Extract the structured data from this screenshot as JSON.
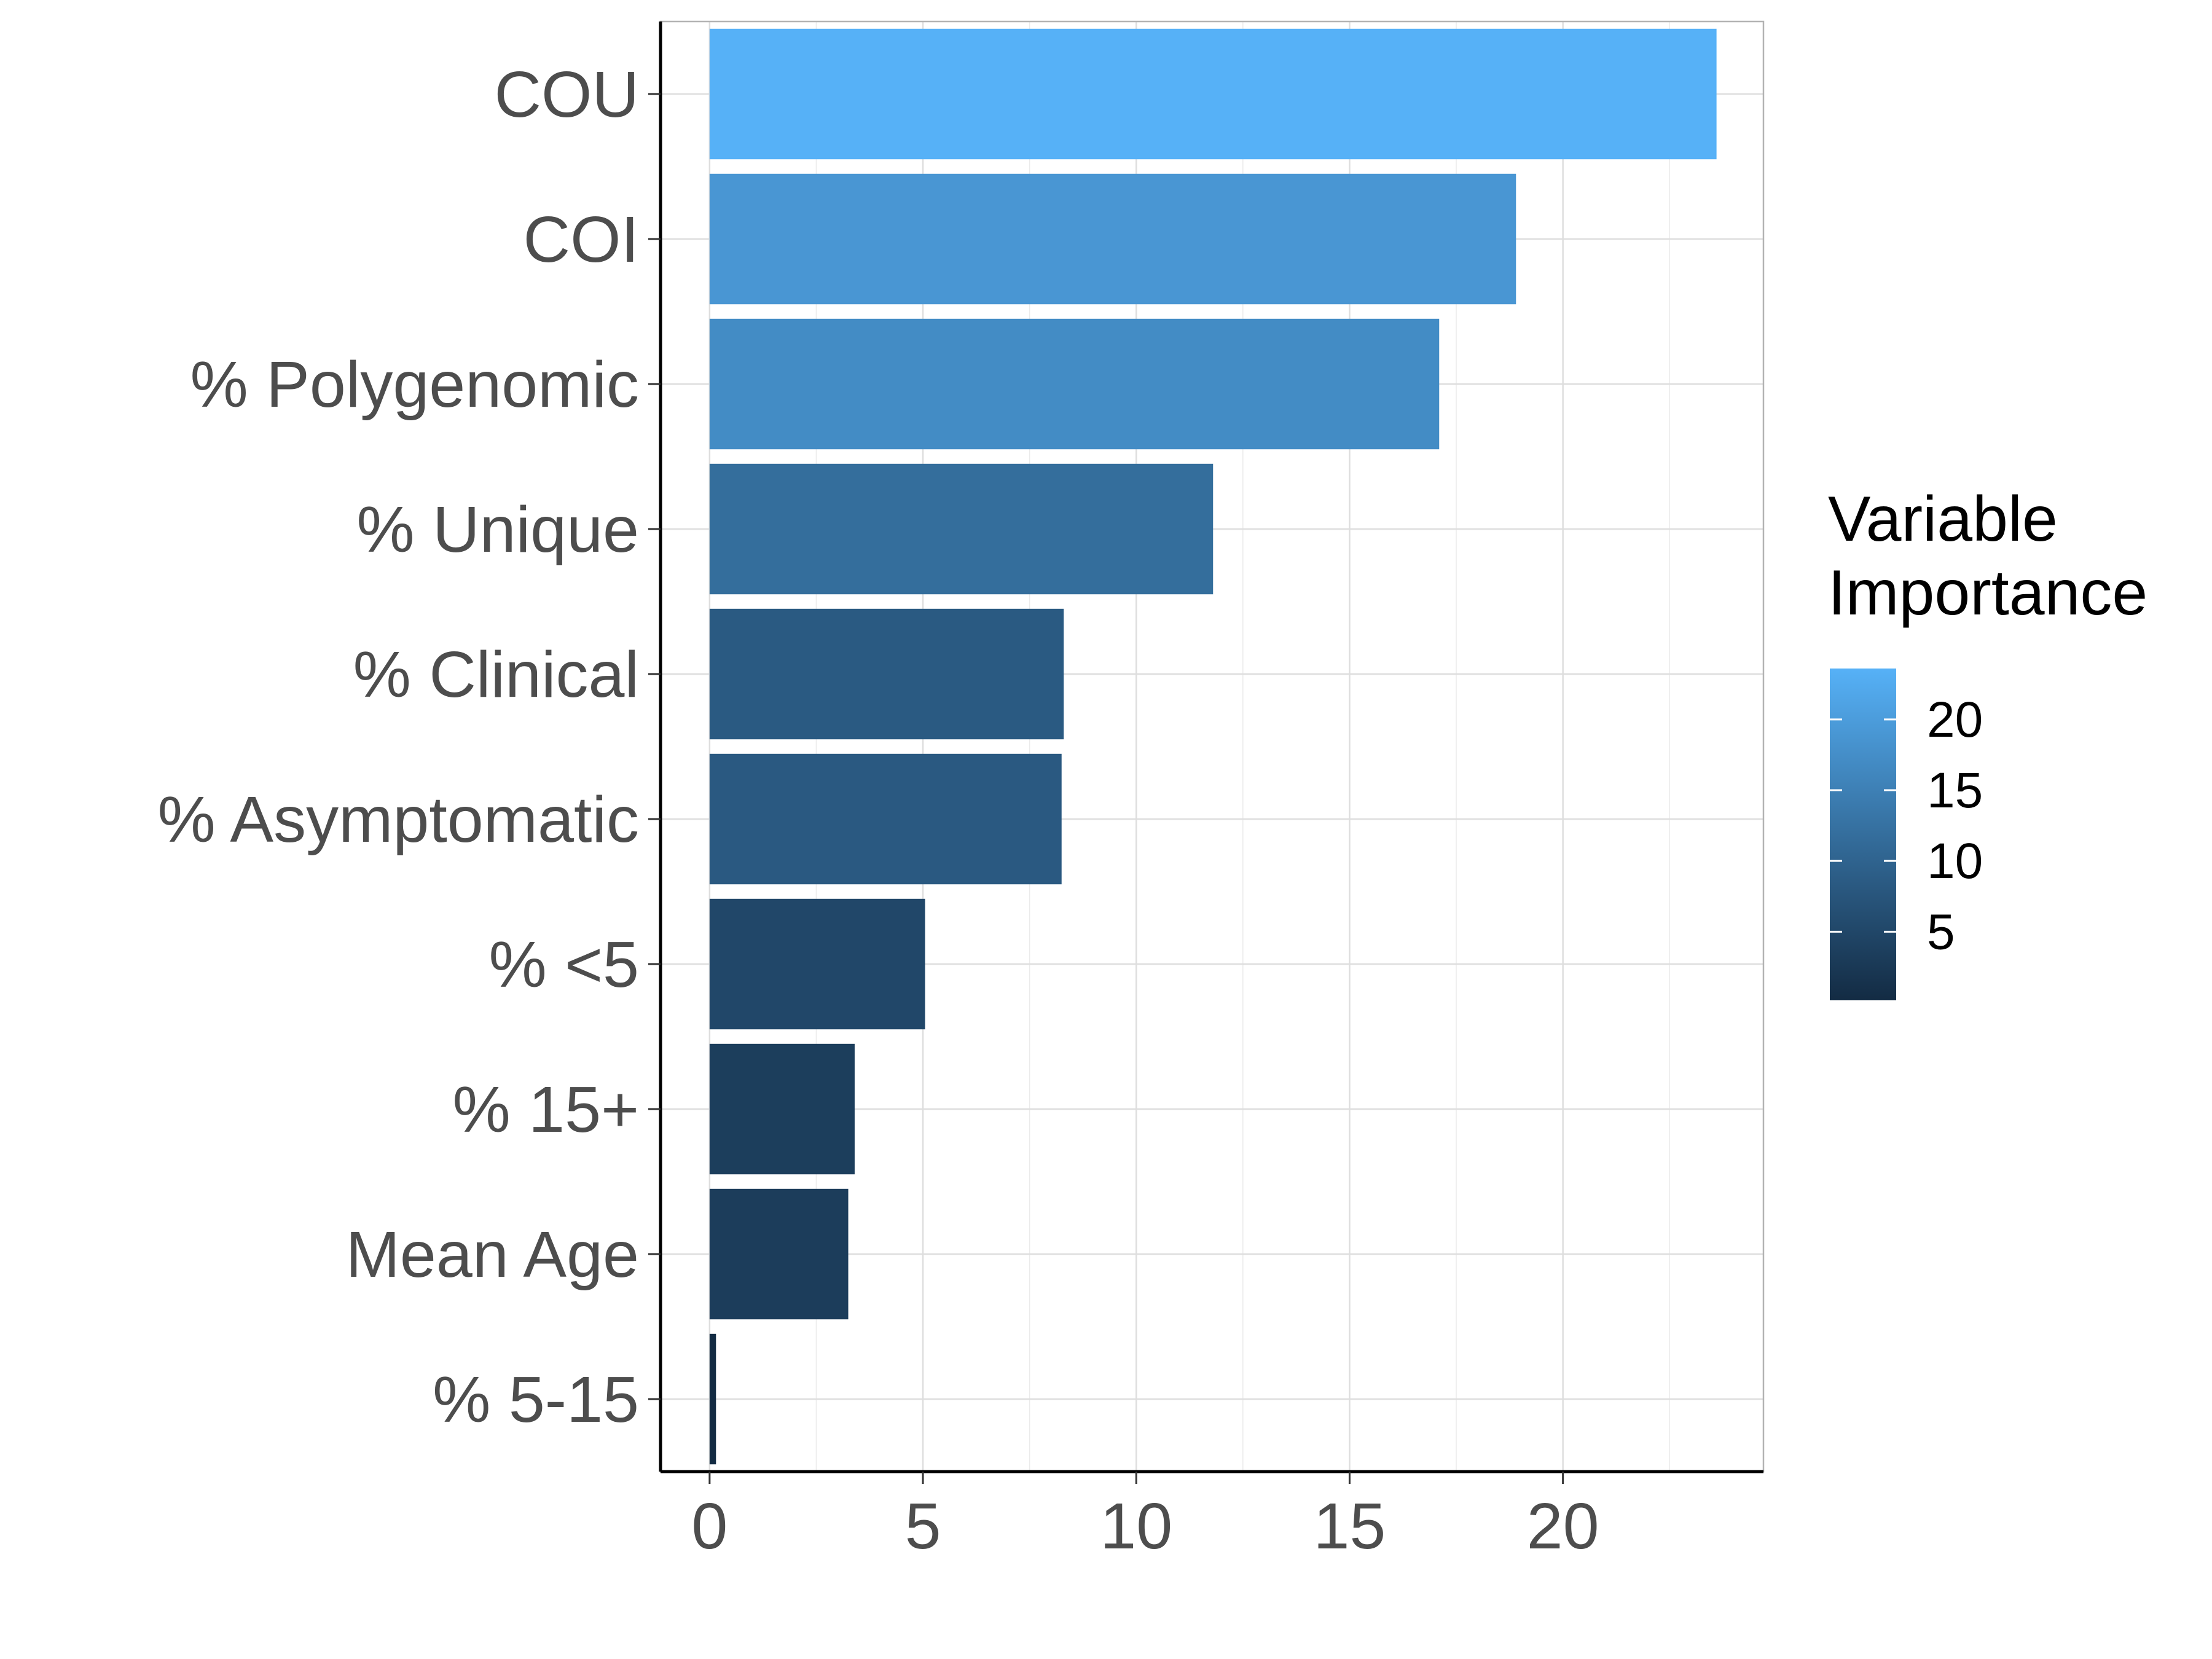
{
  "chart_data": {
    "type": "bar",
    "orientation": "horizontal",
    "categories": [
      "COU",
      "COI",
      "% Polygenomic",
      "% Unique",
      "% Clinical",
      "% Asymptomatic",
      "% <5",
      "% 15+",
      "Mean Age",
      "% 5-15"
    ],
    "values": [
      23.6,
      18.9,
      17.1,
      11.8,
      8.3,
      8.25,
      5.05,
      3.4,
      3.25,
      0.15
    ],
    "xticks": [
      "0",
      "5",
      "10",
      "15",
      "20"
    ],
    "xlim": [
      -1.15,
      24.7
    ],
    "grid": true,
    "legend": {
      "title_lines": [
        "Variable",
        "Importance"
      ],
      "labels": [
        "20",
        "15",
        "10",
        "5"
      ],
      "values": [
        20,
        15,
        10,
        5
      ],
      "range": [
        0.15,
        23.6
      ],
      "low_color": "#132B43",
      "high_color": "#56B1F7",
      "placement": "right"
    }
  }
}
